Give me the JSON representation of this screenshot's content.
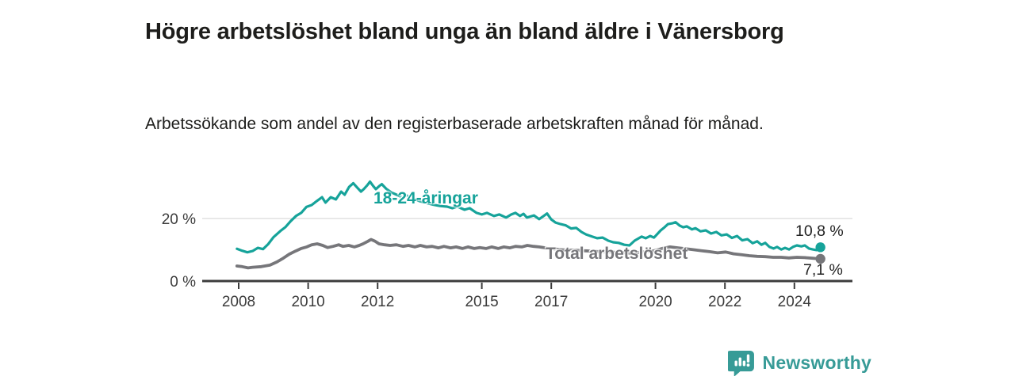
{
  "header": {
    "title": "Högre arbetslöshet bland unga än bland äldre i Vänersborg",
    "subtitle": "Arbetssökande som andel av den registerbaserade arbetskraften månad för månad."
  },
  "footer": {
    "brand": "Newsworthy",
    "logo_icon": "bar-chart-speech-bubble-icon"
  },
  "colors": {
    "young": "#16a39a",
    "total": "#76767a",
    "axis": "#3c3c3c",
    "grid": "#d9d9d9",
    "text": "#1d1d1b",
    "brand": "#379b97"
  },
  "chart_data": {
    "type": "line",
    "title": "Högre arbetslöshet bland unga än bland äldre i Vänersborg",
    "subtitle": "Arbetssökande som andel av den registerbaserade arbetskraften månad för månad.",
    "xlabel": "",
    "ylabel": "",
    "x_unit": "year",
    "y_unit": "%",
    "xlim": [
      2006.95,
      2025.65
    ],
    "ylim": [
      0,
      34
    ],
    "grid": "single horizontal gridline at 20 %",
    "legend_position": "inline labels on lines",
    "x_ticks": [
      {
        "v": 2008,
        "label": "2008"
      },
      {
        "v": 2010,
        "label": "2010"
      },
      {
        "v": 2012,
        "label": "2012"
      },
      {
        "v": 2015,
        "label": "2015"
      },
      {
        "v": 2017,
        "label": "2017"
      },
      {
        "v": 2020,
        "label": "2020"
      },
      {
        "v": 2022,
        "label": "2022"
      },
      {
        "v": 2024,
        "label": "2024"
      }
    ],
    "y_ticks": [
      {
        "v": 20,
        "label": "20 %"
      },
      {
        "v": 0,
        "label": "0 %"
      }
    ],
    "series": [
      {
        "name": "18-24-åringar",
        "color": "#16a39a",
        "end_label": "10,8 %",
        "end_value": 10.8,
        "points": [
          [
            2007.95,
            10.3
          ],
          [
            2008.1,
            9.7
          ],
          [
            2008.25,
            9.2
          ],
          [
            2008.4,
            9.6
          ],
          [
            2008.55,
            10.6
          ],
          [
            2008.7,
            10.2
          ],
          [
            2008.85,
            11.8
          ],
          [
            2009.0,
            14.0
          ],
          [
            2009.2,
            16.0
          ],
          [
            2009.35,
            17.3
          ],
          [
            2009.5,
            19.2
          ],
          [
            2009.65,
            20.8
          ],
          [
            2009.8,
            21.8
          ],
          [
            2009.95,
            23.7
          ],
          [
            2010.1,
            24.3
          ],
          [
            2010.25,
            25.6
          ],
          [
            2010.4,
            26.8
          ],
          [
            2010.5,
            25.1
          ],
          [
            2010.65,
            26.8
          ],
          [
            2010.8,
            26.1
          ],
          [
            2010.95,
            28.6
          ],
          [
            2011.05,
            27.6
          ],
          [
            2011.18,
            30.1
          ],
          [
            2011.3,
            31.3
          ],
          [
            2011.42,
            29.8
          ],
          [
            2011.52,
            28.6
          ],
          [
            2011.6,
            29.4
          ],
          [
            2011.7,
            30.6
          ],
          [
            2011.78,
            31.8
          ],
          [
            2011.88,
            30.3
          ],
          [
            2011.95,
            29.4
          ],
          [
            2012.05,
            30.4
          ],
          [
            2012.12,
            31.0
          ],
          [
            2012.25,
            29.5
          ],
          [
            2012.4,
            28.3
          ],
          [
            2012.55,
            27.6
          ],
          [
            2012.7,
            26.8
          ],
          [
            2012.85,
            27.3
          ],
          [
            2013.0,
            26.5
          ],
          [
            2013.2,
            25.6
          ],
          [
            2013.4,
            25.0
          ],
          [
            2013.6,
            24.4
          ],
          [
            2013.8,
            24.0
          ],
          [
            2014.0,
            23.8
          ],
          [
            2014.15,
            23.3
          ],
          [
            2014.3,
            23.8
          ],
          [
            2014.5,
            22.8
          ],
          [
            2014.65,
            23.3
          ],
          [
            2014.85,
            21.8
          ],
          [
            2015.0,
            21.3
          ],
          [
            2015.15,
            21.8
          ],
          [
            2015.35,
            20.8
          ],
          [
            2015.5,
            21.3
          ],
          [
            2015.7,
            20.3
          ],
          [
            2015.85,
            21.3
          ],
          [
            2015.97,
            21.8
          ],
          [
            2016.1,
            20.8
          ],
          [
            2016.2,
            21.5
          ],
          [
            2016.3,
            20.3
          ],
          [
            2016.5,
            21.0
          ],
          [
            2016.65,
            19.8
          ],
          [
            2016.78,
            20.8
          ],
          [
            2016.88,
            21.6
          ],
          [
            2017.0,
            19.7
          ],
          [
            2017.12,
            18.7
          ],
          [
            2017.27,
            18.2
          ],
          [
            2017.42,
            17.8
          ],
          [
            2017.57,
            16.8
          ],
          [
            2017.72,
            17.0
          ],
          [
            2017.87,
            15.7
          ],
          [
            2018.0,
            14.9
          ],
          [
            2018.18,
            14.2
          ],
          [
            2018.32,
            13.7
          ],
          [
            2018.48,
            13.9
          ],
          [
            2018.64,
            12.9
          ],
          [
            2018.78,
            12.4
          ],
          [
            2018.94,
            12.2
          ],
          [
            2019.1,
            11.6
          ],
          [
            2019.25,
            11.4
          ],
          [
            2019.4,
            12.9
          ],
          [
            2019.6,
            14.2
          ],
          [
            2019.72,
            13.7
          ],
          [
            2019.85,
            14.4
          ],
          [
            2019.96,
            13.9
          ],
          [
            2020.15,
            16.2
          ],
          [
            2020.26,
            17.2
          ],
          [
            2020.36,
            18.2
          ],
          [
            2020.5,
            18.5
          ],
          [
            2020.58,
            18.8
          ],
          [
            2020.7,
            17.7
          ],
          [
            2020.8,
            17.2
          ],
          [
            2020.9,
            17.5
          ],
          [
            2021.05,
            16.5
          ],
          [
            2021.15,
            16.9
          ],
          [
            2021.3,
            15.9
          ],
          [
            2021.45,
            16.2
          ],
          [
            2021.6,
            15.2
          ],
          [
            2021.75,
            15.7
          ],
          [
            2021.9,
            14.6
          ],
          [
            2022.05,
            14.9
          ],
          [
            2022.2,
            13.8
          ],
          [
            2022.35,
            14.4
          ],
          [
            2022.5,
            13.0
          ],
          [
            2022.65,
            13.4
          ],
          [
            2022.8,
            12.1
          ],
          [
            2022.93,
            12.7
          ],
          [
            2023.05,
            11.6
          ],
          [
            2023.16,
            12.2
          ],
          [
            2023.28,
            10.9
          ],
          [
            2023.4,
            10.4
          ],
          [
            2023.5,
            10.9
          ],
          [
            2023.62,
            10.1
          ],
          [
            2023.73,
            10.6
          ],
          [
            2023.85,
            10.1
          ],
          [
            2023.96,
            10.9
          ],
          [
            2024.07,
            11.4
          ],
          [
            2024.2,
            11.1
          ],
          [
            2024.3,
            11.4
          ],
          [
            2024.42,
            10.4
          ],
          [
            2024.53,
            10.1
          ],
          [
            2024.64,
            9.9
          ],
          [
            2024.75,
            10.8
          ]
        ]
      },
      {
        "name": "Total arbetslöshet",
        "color": "#76767a",
        "end_label": "7,1 %",
        "end_value": 7.1,
        "points": [
          [
            2007.95,
            4.8
          ],
          [
            2008.1,
            4.6
          ],
          [
            2008.27,
            4.2
          ],
          [
            2008.4,
            4.4
          ],
          [
            2008.65,
            4.6
          ],
          [
            2008.9,
            5.1
          ],
          [
            2009.1,
            6.1
          ],
          [
            2009.28,
            7.3
          ],
          [
            2009.46,
            8.6
          ],
          [
            2009.64,
            9.6
          ],
          [
            2009.8,
            10.4
          ],
          [
            2009.96,
            10.9
          ],
          [
            2010.1,
            11.6
          ],
          [
            2010.26,
            11.9
          ],
          [
            2010.42,
            11.4
          ],
          [
            2010.56,
            10.7
          ],
          [
            2010.72,
            11.1
          ],
          [
            2010.88,
            11.6
          ],
          [
            2011.0,
            11.1
          ],
          [
            2011.17,
            11.4
          ],
          [
            2011.33,
            10.9
          ],
          [
            2011.47,
            11.4
          ],
          [
            2011.58,
            11.9
          ],
          [
            2011.72,
            12.7
          ],
          [
            2011.81,
            13.3
          ],
          [
            2011.93,
            12.7
          ],
          [
            2012.04,
            11.9
          ],
          [
            2012.2,
            11.6
          ],
          [
            2012.36,
            11.4
          ],
          [
            2012.54,
            11.6
          ],
          [
            2012.73,
            11.1
          ],
          [
            2012.89,
            11.4
          ],
          [
            2013.07,
            10.9
          ],
          [
            2013.23,
            11.4
          ],
          [
            2013.41,
            10.9
          ],
          [
            2013.57,
            11.1
          ],
          [
            2013.75,
            10.6
          ],
          [
            2013.91,
            11.1
          ],
          [
            2014.1,
            10.6
          ],
          [
            2014.26,
            10.9
          ],
          [
            2014.44,
            10.4
          ],
          [
            2014.6,
            10.9
          ],
          [
            2014.78,
            10.4
          ],
          [
            2014.94,
            10.7
          ],
          [
            2015.12,
            10.4
          ],
          [
            2015.28,
            10.9
          ],
          [
            2015.47,
            10.4
          ],
          [
            2015.63,
            10.9
          ],
          [
            2015.81,
            10.6
          ],
          [
            2015.97,
            11.1
          ],
          [
            2016.15,
            10.9
          ],
          [
            2016.31,
            11.4
          ],
          [
            2016.49,
            11.1
          ],
          [
            2016.65,
            10.9
          ],
          [
            2016.84,
            10.6
          ],
          [
            2017.0,
            10.4
          ],
          [
            2017.22,
            10.1
          ],
          [
            2017.45,
            9.9
          ],
          [
            2017.68,
            9.9
          ],
          [
            2017.91,
            9.7
          ],
          [
            2018.14,
            9.6
          ],
          [
            2018.36,
            9.4
          ],
          [
            2018.59,
            9.4
          ],
          [
            2018.82,
            9.2
          ],
          [
            2019.05,
            9.1
          ],
          [
            2019.28,
            8.9
          ],
          [
            2019.5,
            9.1
          ],
          [
            2019.73,
            9.4
          ],
          [
            2019.96,
            9.7
          ],
          [
            2020.19,
            10.4
          ],
          [
            2020.42,
            10.9
          ],
          [
            2020.65,
            10.6
          ],
          [
            2020.88,
            10.3
          ],
          [
            2021.11,
            10.0
          ],
          [
            2021.33,
            9.7
          ],
          [
            2021.56,
            9.4
          ],
          [
            2021.79,
            9.0
          ],
          [
            2022.02,
            9.3
          ],
          [
            2022.25,
            8.7
          ],
          [
            2022.48,
            8.4
          ],
          [
            2022.7,
            8.1
          ],
          [
            2022.93,
            7.9
          ],
          [
            2023.16,
            7.8
          ],
          [
            2023.39,
            7.6
          ],
          [
            2023.62,
            7.6
          ],
          [
            2023.84,
            7.4
          ],
          [
            2024.07,
            7.6
          ],
          [
            2024.3,
            7.5
          ],
          [
            2024.53,
            7.3
          ],
          [
            2024.64,
            7.2
          ],
          [
            2024.75,
            7.1
          ]
        ]
      }
    ]
  }
}
